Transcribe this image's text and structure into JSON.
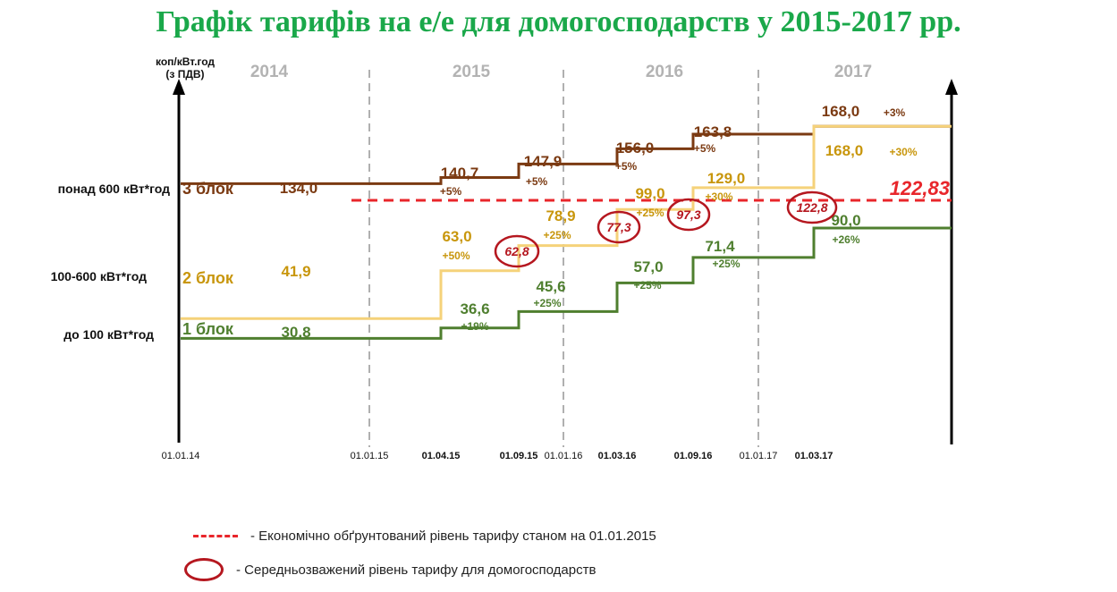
{
  "title": "Графік тарифів на е/е для домогосподарств у 2015-2017 рр.",
  "chart_data": {
    "type": "line",
    "step": true,
    "ylabel": "коп/кВт.год (з ПДВ)",
    "years": [
      "2014",
      "2015",
      "2016",
      "2017"
    ],
    "x_dates": [
      {
        "label": "01.01.14",
        "bold": false
      },
      {
        "label": "01.01.15",
        "bold": false
      },
      {
        "label": "01.04.15",
        "bold": true
      },
      {
        "label": "01.09.15",
        "bold": true
      },
      {
        "label": "01.01.16",
        "bold": false
      },
      {
        "label": "01.03.16",
        "bold": true
      },
      {
        "label": "01.09.16",
        "bold": true
      },
      {
        "label": "01.01.17",
        "bold": false
      },
      {
        "label": "01.03.17",
        "bold": true
      }
    ],
    "year_boundaries": [
      "01.01.15",
      "01.01.16",
      "01.01.17"
    ],
    "series": [
      {
        "name": "3 блок",
        "category": "понад 600 кВт*год",
        "color": "#7b3a12",
        "points": [
          {
            "date": "01.01.14",
            "value": 134.0,
            "label": "134,0",
            "change": ""
          },
          {
            "date": "01.04.15",
            "value": 140.7,
            "label": "140,7",
            "change": "+5%"
          },
          {
            "date": "01.09.15",
            "value": 147.9,
            "label": "147,9",
            "change": "+5%"
          },
          {
            "date": "01.03.16",
            "value": 156.0,
            "label": "156,0",
            "change": "+5%"
          },
          {
            "date": "01.09.16",
            "value": 163.8,
            "label": "163,8",
            "change": "+5%"
          },
          {
            "date": "01.03.17",
            "value": 168.0,
            "label": "168,0",
            "change": "+3%"
          }
        ]
      },
      {
        "name": "2 блок",
        "category": "100-600 кВт*год",
        "color": "#f5d27a",
        "label_color": "#c8960c",
        "points": [
          {
            "date": "01.01.14",
            "value": 41.9,
            "label": "41,9",
            "change": ""
          },
          {
            "date": "01.04.15",
            "value": 63.0,
            "label": "63,0",
            "change": "+50%"
          },
          {
            "date": "01.09.15",
            "value": 78.9,
            "label": "78,9",
            "change": "+25%"
          },
          {
            "date": "01.03.16",
            "value": 99.0,
            "label": "99,0",
            "change": "+25%"
          },
          {
            "date": "01.09.16",
            "value": 129.0,
            "label": "129,0",
            "change": "+30%"
          },
          {
            "date": "01.03.17",
            "value": 168.0,
            "label": "168,0",
            "change": "+30%"
          }
        ]
      },
      {
        "name": "1 блок",
        "category": "до 100 кВт*год",
        "color": "#4f7f2f",
        "points": [
          {
            "date": "01.01.14",
            "value": 30.8,
            "label": "30,8",
            "change": ""
          },
          {
            "date": "01.04.15",
            "value": 36.6,
            "label": "36,6",
            "change": "+19%"
          },
          {
            "date": "01.09.15",
            "value": 45.6,
            "label": "45,6",
            "change": "+25%"
          },
          {
            "date": "01.03.16",
            "value": 57.0,
            "label": "57,0",
            "change": "+25%"
          },
          {
            "date": "01.09.16",
            "value": 71.4,
            "label": "71,4",
            "change": "+25%"
          },
          {
            "date": "01.03.17",
            "value": 90.0,
            "label": "90,0",
            "change": "+26%"
          }
        ]
      }
    ],
    "reference_line": {
      "value": 122.83,
      "label": "122,83",
      "color": "#e8262b"
    },
    "weighted_average": [
      {
        "date": "01.09.15",
        "label": "62,8"
      },
      {
        "date": "01.03.16",
        "label": "77,3"
      },
      {
        "date": "01.09.16",
        "label": "97,3"
      },
      {
        "date": "01.03.17",
        "label": "122,8"
      }
    ],
    "legend": [
      {
        "type": "dashed-line",
        "text": "- Економічно обґрунтований рівень тарифу станом на 01.01.2015"
      },
      {
        "type": "ellipse",
        "text": "- Середньозважений рівень тарифу для домогосподарств"
      }
    ]
  }
}
